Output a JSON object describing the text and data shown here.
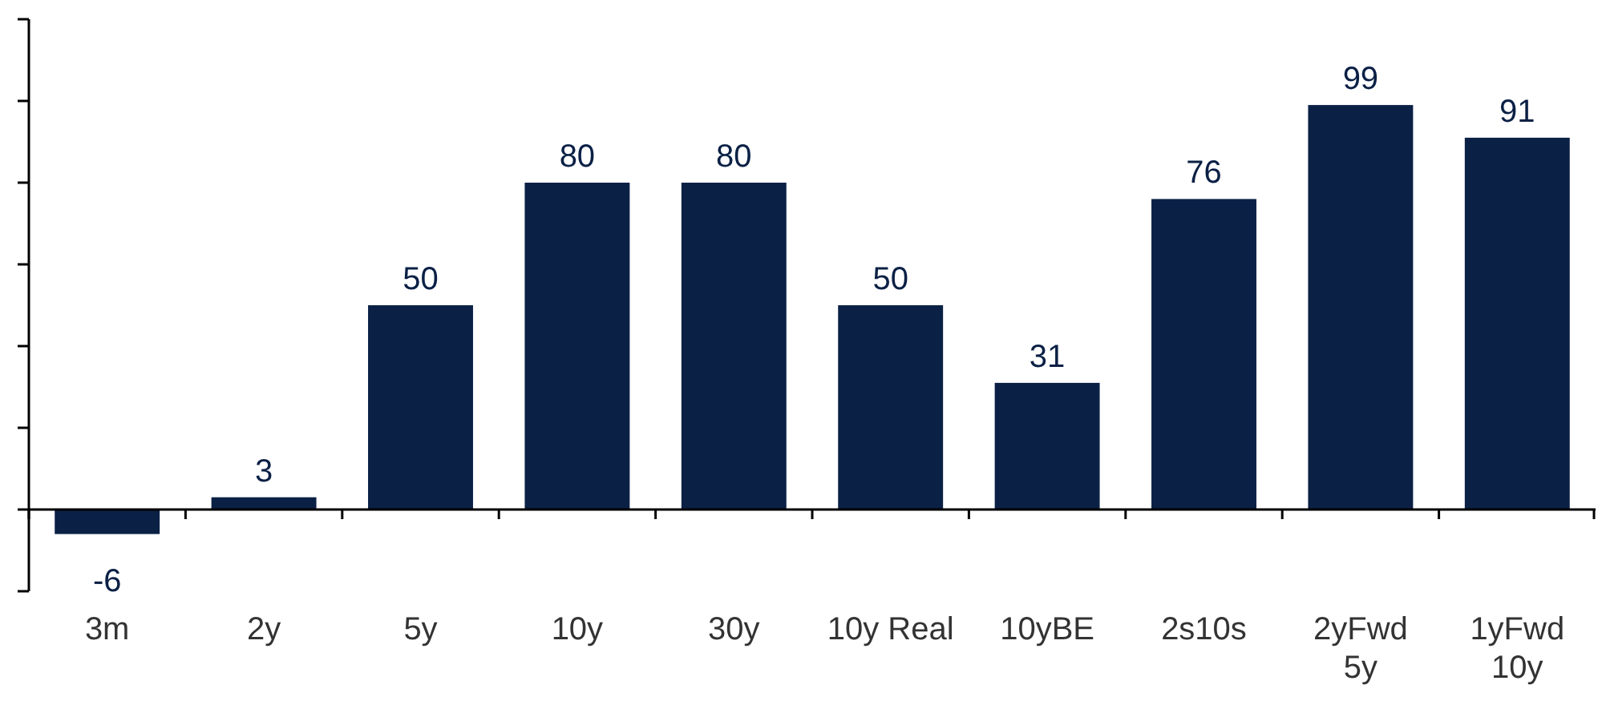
{
  "chart_data": {
    "type": "bar",
    "categories": [
      "3m",
      "2y",
      "5y",
      "10y",
      "30y",
      "10y Real",
      "10yBE",
      "2s10s",
      "2yFwd\n5y",
      "1yFwd\n10y"
    ],
    "values": [
      -6,
      3,
      50,
      80,
      80,
      50,
      31,
      76,
      99,
      91
    ],
    "color": "#0b2045",
    "ylim": [
      -20,
      120
    ],
    "yticks": [
      {
        "value": -20,
        "label": null
      },
      {
        "value": 0,
        "label": null
      },
      {
        "value": 20,
        "label": null
      },
      {
        "value": 40,
        "label": null
      },
      {
        "value": 60,
        "label": null
      },
      {
        "value": 80,
        "label": null
      },
      {
        "value": 100,
        "label": null
      },
      {
        "value": 120,
        "label": null
      }
    ],
    "tick_labels": "x",
    "data_labels": true
  }
}
